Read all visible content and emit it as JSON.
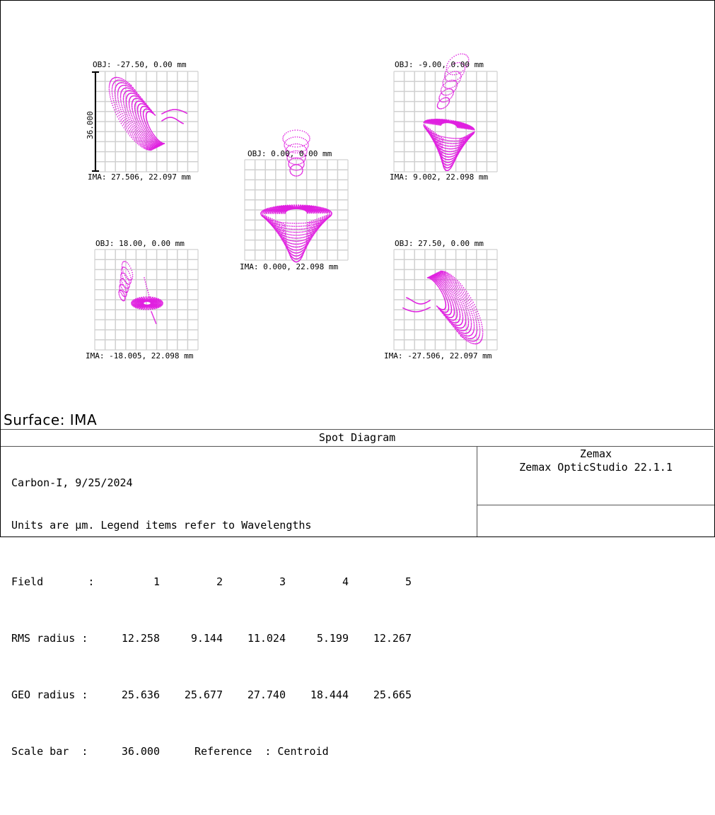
{
  "plots": [
    {
      "id": "field-1",
      "obj": "OBJ: -27.50, 0.00 mm",
      "ima": "IMA: 27.506, 22.097 mm",
      "shape": "A"
    },
    {
      "id": "field-2",
      "obj": "OBJ: -9.00, 0.00 mm",
      "ima": "IMA: 9.002, 22.098 mm",
      "shape": "B"
    },
    {
      "id": "field-3",
      "obj": "OBJ: 0.00, 0.00 mm",
      "ima": "IMA: 0.000, 22.098 mm",
      "shape": "C"
    },
    {
      "id": "field-4",
      "obj": "OBJ: 18.00, 0.00 mm",
      "ima": "IMA: -18.005, 22.098 mm",
      "shape": "D"
    },
    {
      "id": "field-5",
      "obj": "OBJ: 27.50, 0.00 mm",
      "ima": "IMA: -27.506, 22.097 mm",
      "shape": "E"
    }
  ],
  "scale_bar_label": "36.000",
  "spot_color": "#e020e0",
  "grid_color": "#d0d0d0",
  "surface": "Surface: IMA",
  "footer": {
    "title": "Spot Diagram",
    "line1": "Carbon-I, 9/25/2024",
    "line2": "Units are µm. Legend items refer to Wavelengths",
    "field_label": "Field       :",
    "field_values": [
      "1",
      "2",
      "3",
      "4",
      "5"
    ],
    "rms_label": "RMS radius :",
    "rms_values": [
      "12.258",
      "9.144",
      "11.024",
      "5.199",
      "12.267"
    ],
    "geo_label": "GEO radius :",
    "geo_values": [
      "25.636",
      "25.677",
      "27.740",
      "18.444",
      "25.665"
    ],
    "scale_label": "Scale bar  :",
    "scale_value": "36.000",
    "reference": "Reference  : Centroid",
    "right_line1": "Zemax",
    "right_line2": "Zemax OpticStudio 22.1.1"
  }
}
